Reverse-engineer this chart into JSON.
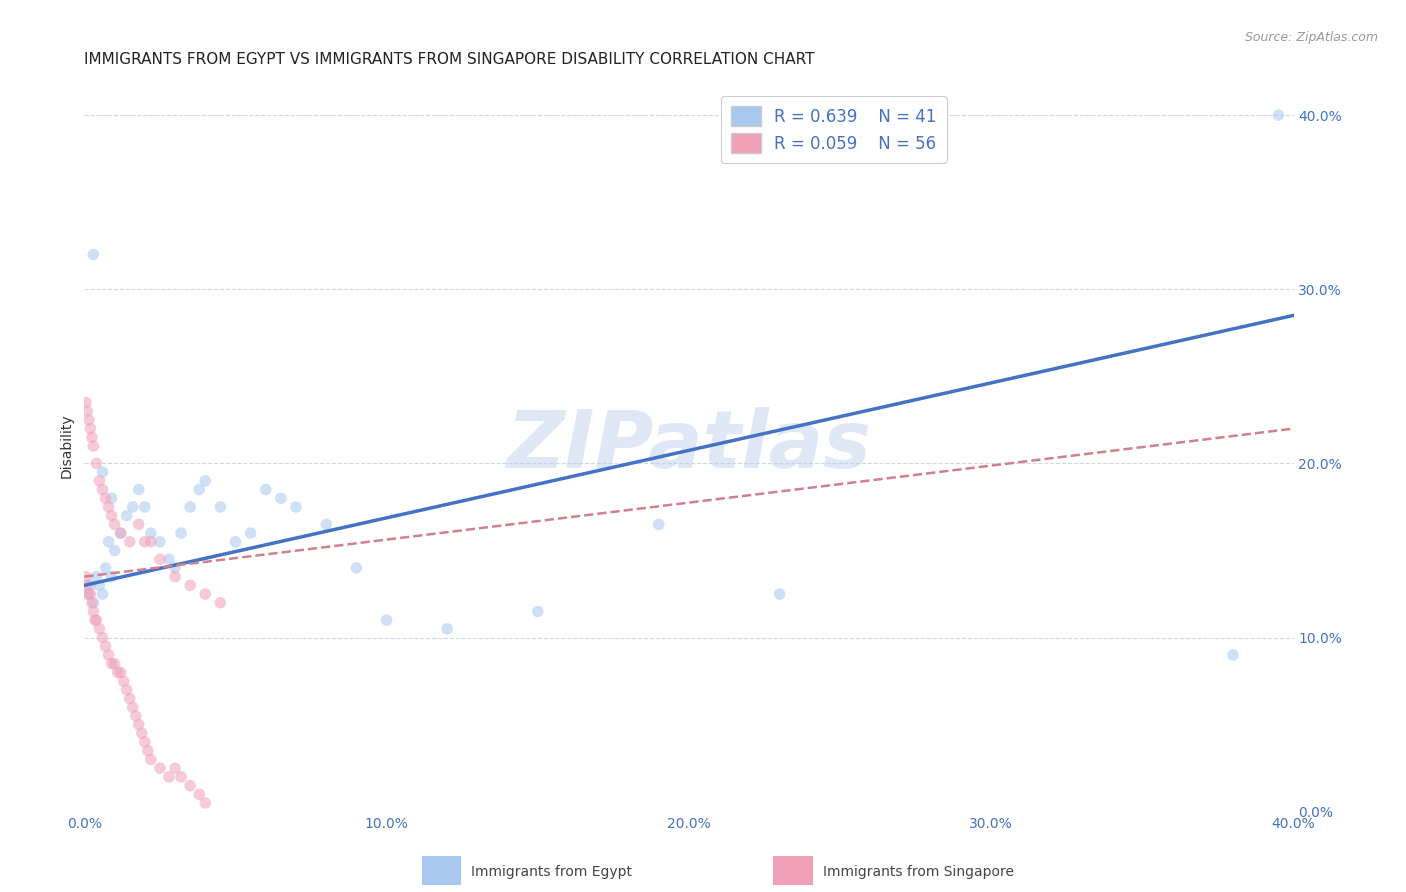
{
  "title": "IMMIGRANTS FROM EGYPT VS IMMIGRANTS FROM SINGAPORE DISABILITY CORRELATION CHART",
  "source": "Source: ZipAtlas.com",
  "ylabel": "Disability",
  "watermark": "ZIPatlas",
  "xlim": [
    0.0,
    0.4
  ],
  "ylim": [
    0.0,
    0.42
  ],
  "ytick_positions": [
    0.0,
    0.1,
    0.2,
    0.3,
    0.4
  ],
  "xtick_positions": [
    0.0,
    0.1,
    0.2,
    0.3,
    0.4
  ],
  "legend_R1": "R = 0.639",
  "legend_N1": "N = 41",
  "legend_R2": "R = 0.059",
  "legend_N2": "N = 56",
  "color_egypt": "#a8c8f0",
  "color_singapore": "#f0a0b8",
  "color_line_egypt": "#4472c4",
  "color_line_singapore": "#d08090",
  "background_color": "#ffffff",
  "grid_color": "#d0d8e8",
  "egypt_scatter_x": [
    0.001,
    0.002,
    0.003,
    0.004,
    0.005,
    0.006,
    0.007,
    0.008,
    0.009,
    0.01,
    0.012,
    0.014,
    0.016,
    0.018,
    0.02,
    0.022,
    0.025,
    0.028,
    0.03,
    0.032,
    0.035,
    0.038,
    0.04,
    0.045,
    0.05,
    0.055,
    0.06,
    0.065,
    0.07,
    0.08,
    0.09,
    0.1,
    0.12,
    0.15,
    0.19,
    0.23,
    0.38,
    0.003,
    0.006,
    0.009,
    0.395
  ],
  "egypt_scatter_y": [
    0.125,
    0.13,
    0.12,
    0.135,
    0.13,
    0.125,
    0.14,
    0.155,
    0.135,
    0.15,
    0.16,
    0.17,
    0.175,
    0.185,
    0.175,
    0.16,
    0.155,
    0.145,
    0.14,
    0.16,
    0.175,
    0.185,
    0.19,
    0.175,
    0.155,
    0.16,
    0.185,
    0.18,
    0.175,
    0.165,
    0.14,
    0.11,
    0.105,
    0.115,
    0.165,
    0.125,
    0.09,
    0.32,
    0.195,
    0.18,
    0.4
  ],
  "singapore_scatter_x": [
    0.0005,
    0.001,
    0.0015,
    0.002,
    0.0025,
    0.003,
    0.0035,
    0.004,
    0.005,
    0.006,
    0.007,
    0.008,
    0.009,
    0.01,
    0.011,
    0.012,
    0.013,
    0.014,
    0.015,
    0.016,
    0.017,
    0.018,
    0.019,
    0.02,
    0.021,
    0.022,
    0.025,
    0.028,
    0.03,
    0.032,
    0.035,
    0.038,
    0.04,
    0.0005,
    0.001,
    0.0015,
    0.002,
    0.0025,
    0.003,
    0.004,
    0.005,
    0.006,
    0.007,
    0.008,
    0.009,
    0.01,
    0.012,
    0.015,
    0.018,
    0.02,
    0.022,
    0.025,
    0.03,
    0.035,
    0.04,
    0.045
  ],
  "singapore_scatter_y": [
    0.135,
    0.13,
    0.125,
    0.125,
    0.12,
    0.115,
    0.11,
    0.11,
    0.105,
    0.1,
    0.095,
    0.09,
    0.085,
    0.085,
    0.08,
    0.08,
    0.075,
    0.07,
    0.065,
    0.06,
    0.055,
    0.05,
    0.045,
    0.04,
    0.035,
    0.03,
    0.025,
    0.02,
    0.025,
    0.02,
    0.015,
    0.01,
    0.005,
    0.235,
    0.23,
    0.225,
    0.22,
    0.215,
    0.21,
    0.2,
    0.19,
    0.185,
    0.18,
    0.175,
    0.17,
    0.165,
    0.16,
    0.155,
    0.165,
    0.155,
    0.155,
    0.145,
    0.135,
    0.13,
    0.125,
    0.12
  ],
  "egypt_line_x": [
    0.0,
    0.4
  ],
  "egypt_line_y": [
    0.13,
    0.285
  ],
  "singapore_line_x": [
    0.0,
    0.4
  ],
  "singapore_line_y": [
    0.135,
    0.22
  ],
  "title_fontsize": 11,
  "axis_label_fontsize": 10,
  "tick_fontsize": 10,
  "legend_fontsize": 12,
  "marker_size": 70,
  "marker_alpha": 0.55
}
